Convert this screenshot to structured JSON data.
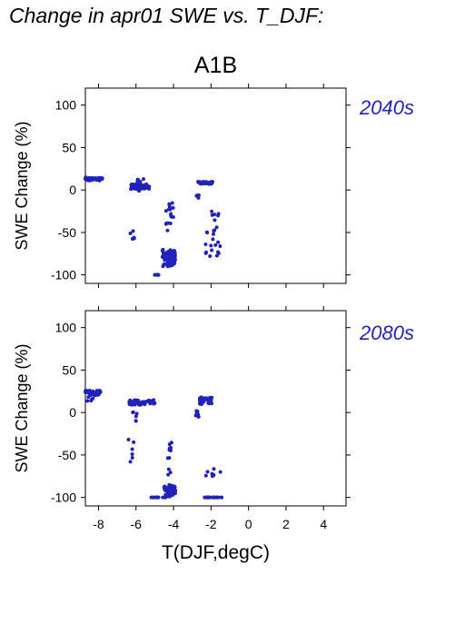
{
  "page": {
    "title": "Change in apr01 SWE vs. T_DJF:",
    "scenario": "A1B"
  },
  "colors": {
    "points": "#2222bb",
    "period_label": "#2222bb",
    "axes": "#000000"
  },
  "chart_data": [
    {
      "type": "scatter",
      "title": "2040s",
      "xlabel": "T(DJF,degC)",
      "ylabel": "SWE Change (%)",
      "xlim": [
        -8.7,
        5.2
      ],
      "ylim": [
        -110,
        120
      ],
      "xticks": [
        -8,
        -6,
        -4,
        -2,
        0,
        2,
        4
      ],
      "yticks": [
        -100,
        -50,
        0,
        50,
        100
      ],
      "show_x_tick_labels": false,
      "grid": false,
      "clusters": [
        {
          "x": [
            -8.7,
            -7.8
          ],
          "y": [
            11,
            15
          ],
          "n": 40
        },
        {
          "x": [
            -6.3,
            -5.3
          ],
          "y": [
            1,
            7
          ],
          "n": 45
        },
        {
          "x": [
            -6.0,
            -5.6
          ],
          "y": [
            -1,
            15
          ],
          "n": 10
        },
        {
          "x": [
            -6.2,
            -6.1
          ],
          "y": [
            -58,
            -48
          ],
          "n": 3
        },
        {
          "x": [
            -5.0,
            -4.8
          ],
          "y": [
            -100,
            -100
          ],
          "n": 6
        },
        {
          "x": [
            -4.6,
            -3.9
          ],
          "y": [
            -90,
            -70
          ],
          "n": 55
        },
        {
          "x": [
            -4.4,
            -4.0
          ],
          "y": [
            -50,
            -15
          ],
          "n": 15
        },
        {
          "x": [
            -2.8,
            -2.6
          ],
          "y": [
            -10,
            -5
          ],
          "n": 5
        },
        {
          "x": [
            -2.7,
            -1.9
          ],
          "y": [
            7,
            10
          ],
          "n": 30
        },
        {
          "x": [
            -2.3,
            -1.5
          ],
          "y": [
            -80,
            -25
          ],
          "n": 22
        }
      ],
      "series": [
        {
          "x": [
            -8.7,
            -8.6,
            -8.5,
            -8.4,
            -8.3,
            -8.2,
            -8.1,
            -8.0,
            -7.9,
            -7.8
          ],
          "y": [
            13,
            13,
            14,
            12,
            13,
            14,
            13,
            12,
            13,
            14
          ]
        },
        {
          "x": [
            -6.2,
            -6.0,
            -5.8,
            -5.7,
            -5.5,
            -5.3,
            -6.1,
            -6.3
          ],
          "y": [
            4,
            5,
            3,
            6,
            2,
            4,
            -57,
            -51
          ]
        },
        {
          "x": [
            -5.0,
            -4.9,
            -4.5,
            -4.3,
            -4.2,
            -4.0,
            -4.4,
            -4.2
          ],
          "y": [
            -100,
            -100,
            -80,
            -85,
            -78,
            -74,
            -40,
            -22
          ]
        },
        {
          "x": [
            -2.7,
            -2.5,
            -2.3,
            -2.1,
            -2.0,
            -1.9,
            -1.7,
            -1.6
          ],
          "y": [
            -8,
            8,
            9,
            8,
            9,
            -58,
            -44,
            -28
          ]
        }
      ]
    },
    {
      "type": "scatter",
      "title": "2080s",
      "xlabel": "T(DJF,degC)",
      "ylabel": "SWE Change (%)",
      "xlim": [
        -8.7,
        5.2
      ],
      "ylim": [
        -110,
        120
      ],
      "xticks": [
        -8,
        -6,
        -4,
        -2,
        0,
        2,
        4
      ],
      "yticks": [
        -100,
        -50,
        0,
        50,
        100
      ],
      "show_x_tick_labels": true,
      "grid": false,
      "clusters": [
        {
          "x": [
            -8.7,
            -7.9
          ],
          "y": [
            20,
            26
          ],
          "n": 45
        },
        {
          "x": [
            -8.6,
            -8.3
          ],
          "y": [
            13,
            20
          ],
          "n": 4
        },
        {
          "x": [
            -6.4,
            -5.0
          ],
          "y": [
            9,
            15
          ],
          "n": 45
        },
        {
          "x": [
            -6.2,
            -5.9
          ],
          "y": [
            -10,
            8
          ],
          "n": 5
        },
        {
          "x": [
            -6.4,
            -6.1
          ],
          "y": [
            -58,
            -30
          ],
          "n": 4
        },
        {
          "x": [
            -5.2,
            -4.4
          ],
          "y": [
            -100,
            -100
          ],
          "n": 10
        },
        {
          "x": [
            -4.5,
            -3.9
          ],
          "y": [
            -100,
            -85
          ],
          "n": 50
        },
        {
          "x": [
            -4.3,
            -4.1
          ],
          "y": [
            -75,
            -30
          ],
          "n": 10
        },
        {
          "x": [
            -2.9,
            -2.6
          ],
          "y": [
            -5,
            2
          ],
          "n": 8
        },
        {
          "x": [
            -2.6,
            -1.9
          ],
          "y": [
            10,
            18
          ],
          "n": 35
        },
        {
          "x": [
            -2.4,
            -1.4
          ],
          "y": [
            -100,
            -100
          ],
          "n": 20
        },
        {
          "x": [
            -2.3,
            -1.8
          ],
          "y": [
            -80,
            -65
          ],
          "n": 6
        }
      ],
      "series": [
        {
          "x": [
            -8.7,
            -8.5,
            -8.3,
            -8.1,
            -7.9,
            -8.4
          ],
          "y": [
            24,
            23,
            25,
            22,
            24,
            14
          ]
        },
        {
          "x": [
            -6.2,
            -5.9,
            -5.6,
            -5.3,
            -5.0,
            -6.3,
            -6.2,
            -6.0
          ],
          "y": [
            10,
            12,
            11,
            13,
            11,
            -58,
            -49,
            -10
          ]
        },
        {
          "x": [
            -5.1,
            -4.8,
            -4.5,
            -4.3,
            -4.2,
            -4.1,
            -4.2
          ],
          "y": [
            -100,
            -100,
            -100,
            -92,
            -88,
            -86,
            -42
          ]
        },
        {
          "x": [
            -2.8,
            -2.6,
            -2.4,
            -2.2,
            -2.0,
            -2.2,
            -1.9,
            -1.7,
            -1.5
          ],
          "y": [
            -3,
            14,
            15,
            16,
            17,
            -100,
            -100,
            -100,
            -70
          ]
        }
      ]
    }
  ]
}
